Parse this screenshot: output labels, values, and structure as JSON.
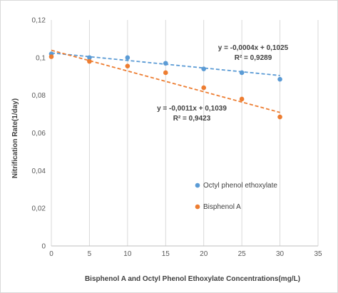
{
  "chart_data": {
    "type": "scatter",
    "xlabel": "Bisphenol A and Octyl Phenol Ethoxylate Concentrations(mg/L)",
    "ylabel": "Nitrification Rate(1/day)",
    "xlim": [
      0,
      35
    ],
    "ylim": [
      0,
      0.12
    ],
    "x_ticks": [
      "0",
      "5",
      "10",
      "15",
      "20",
      "25",
      "30",
      "35"
    ],
    "y_ticks": [
      "0",
      "0,02",
      "0,04",
      "0,06",
      "0,08",
      "0,1",
      "0,12"
    ],
    "grid": "vertical",
    "legend_position": "bottom-right",
    "series": [
      {
        "name": "Octyl phenol ethoxylate",
        "color": "#5b9bd5",
        "x": [
          0,
          5,
          10,
          15,
          20,
          25,
          30
        ],
        "y": [
          0.102,
          0.1,
          0.1,
          0.097,
          0.094,
          0.092,
          0.0885
        ],
        "trendline": {
          "slope": -0.0004,
          "intercept": 0.1025
        },
        "equation": "y = -0,0004x + 0,1025",
        "r2": "R² = 0,9289"
      },
      {
        "name": "Bisphenol A",
        "color": "#ed7d31",
        "x": [
          0,
          5,
          10,
          15,
          20,
          25,
          30
        ],
        "y": [
          0.1005,
          0.098,
          0.0955,
          0.092,
          0.084,
          0.078,
          0.0685
        ],
        "trendline": {
          "slope": -0.0011,
          "intercept": 0.1039
        },
        "equation": "y = -0,0011x + 0,1039",
        "r2": "R² = 0,9423"
      }
    ]
  }
}
